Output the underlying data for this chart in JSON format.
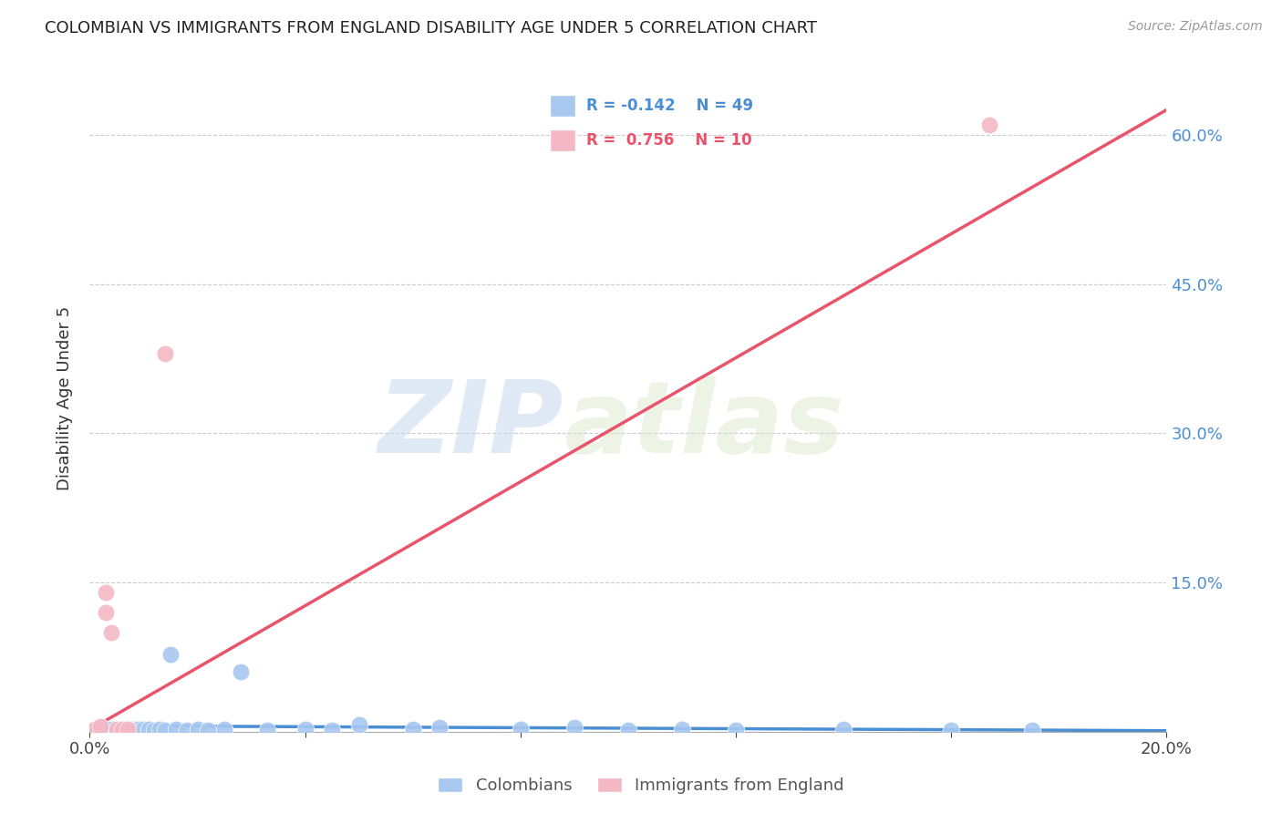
{
  "title": "COLOMBIAN VS IMMIGRANTS FROM ENGLAND DISABILITY AGE UNDER 5 CORRELATION CHART",
  "source": "Source: ZipAtlas.com",
  "ylabel": "Disability Age Under 5",
  "xlim": [
    0.0,
    0.2
  ],
  "ylim": [
    0.0,
    0.67
  ],
  "xticks": [
    0.0,
    0.04,
    0.08,
    0.12,
    0.16,
    0.2
  ],
  "yticks": [
    0.0,
    0.15,
    0.3,
    0.45,
    0.6
  ],
  "xtick_labels": [
    "0.0%",
    "",
    "",
    "",
    "",
    "20.0%"
  ],
  "right_ytick_labels": [
    "60.0%",
    "45.0%",
    "30.0%",
    "15.0%",
    ""
  ],
  "blue_R": "-0.142",
  "blue_N": "49",
  "pink_R": "0.756",
  "pink_N": "10",
  "blue_color": "#A8C8F0",
  "pink_color": "#F4B8C4",
  "blue_line_color": "#4A8FD4",
  "pink_line_color": "#E8546A",
  "watermark_zip": "ZIP",
  "watermark_atlas": "atlas",
  "legend_label_blue": "Colombians",
  "legend_label_pink": "Immigrants from England",
  "colombian_x": [
    0.001,
    0.002,
    0.002,
    0.003,
    0.003,
    0.003,
    0.004,
    0.004,
    0.005,
    0.005,
    0.005,
    0.006,
    0.006,
    0.007,
    0.007,
    0.007,
    0.008,
    0.008,
    0.008,
    0.009,
    0.009,
    0.01,
    0.01,
    0.011,
    0.011,
    0.012,
    0.013,
    0.014,
    0.015,
    0.016,
    0.018,
    0.02,
    0.022,
    0.025,
    0.028,
    0.033,
    0.04,
    0.045,
    0.05,
    0.06,
    0.065,
    0.08,
    0.09,
    0.1,
    0.11,
    0.12,
    0.14,
    0.16,
    0.175
  ],
  "colombian_y": [
    0.002,
    0.002,
    0.003,
    0.001,
    0.002,
    0.003,
    0.002,
    0.003,
    0.001,
    0.002,
    0.003,
    0.002,
    0.003,
    0.001,
    0.002,
    0.003,
    0.002,
    0.003,
    0.002,
    0.001,
    0.003,
    0.002,
    0.003,
    0.002,
    0.003,
    0.002,
    0.003,
    0.002,
    0.078,
    0.003,
    0.002,
    0.003,
    0.002,
    0.003,
    0.06,
    0.002,
    0.003,
    0.002,
    0.007,
    0.003,
    0.004,
    0.003,
    0.004,
    0.002,
    0.003,
    0.002,
    0.003,
    0.002,
    0.002
  ],
  "england_x": [
    0.001,
    0.002,
    0.003,
    0.003,
    0.004,
    0.005,
    0.006,
    0.007,
    0.014,
    0.167
  ],
  "england_y": [
    0.003,
    0.005,
    0.12,
    0.14,
    0.1,
    0.003,
    0.003,
    0.003,
    0.38,
    0.61
  ],
  "blue_trendline_x": [
    0.0,
    0.2
  ],
  "blue_trendline_y": [
    0.006,
    0.001
  ],
  "pink_trendline_x": [
    0.0,
    0.2
  ],
  "pink_trendline_y": [
    0.002,
    0.625
  ]
}
